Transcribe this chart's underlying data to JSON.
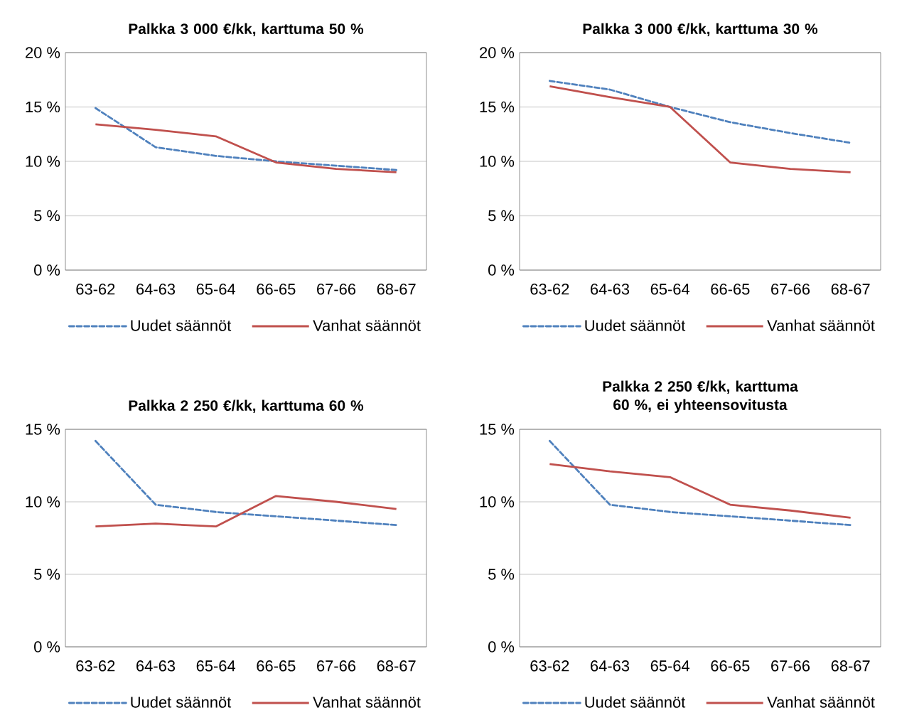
{
  "chart_data": [
    {
      "type": "line",
      "title": "Palkka 3 000 €/kk, karttuma 50 %",
      "categories": [
        "63-62",
        "64-63",
        "65-64",
        "66-65",
        "67-66",
        "68-67"
      ],
      "series": [
        {
          "name": "Uudet säännöt",
          "color": "#4f81bd",
          "line_style": "dashed",
          "values": [
            14.9,
            11.3,
            10.5,
            10.0,
            9.6,
            9.2
          ]
        },
        {
          "name": "Vanhat säännöt",
          "color": "#c0504d",
          "line_style": "solid",
          "values": [
            13.4,
            12.9,
            12.3,
            9.9,
            9.3,
            9.0
          ]
        }
      ],
      "ylim": [
        0,
        20
      ],
      "yticks": [
        {
          "value": 0,
          "label": "0 %"
        },
        {
          "value": 5,
          "label": "5 %"
        },
        {
          "value": 10,
          "label": "10 %"
        },
        {
          "value": 15,
          "label": "15 %"
        },
        {
          "value": 20,
          "label": "20 %"
        }
      ],
      "grid": "y",
      "legend": "bottom"
    },
    {
      "type": "line",
      "title": "Palkka 3 000 €/kk, karttuma 30 %",
      "categories": [
        "63-62",
        "64-63",
        "65-64",
        "66-65",
        "67-66",
        "68-67"
      ],
      "series": [
        {
          "name": "Uudet säännöt",
          "color": "#4f81bd",
          "line_style": "dashed",
          "values": [
            17.4,
            16.6,
            15.0,
            13.6,
            12.6,
            11.7
          ]
        },
        {
          "name": "Vanhat säännöt",
          "color": "#c0504d",
          "line_style": "solid",
          "values": [
            16.9,
            15.9,
            15.0,
            9.9,
            9.3,
            9.0
          ]
        }
      ],
      "ylim": [
        0,
        20
      ],
      "yticks": [
        {
          "value": 0,
          "label": "0 %"
        },
        {
          "value": 5,
          "label": "5 %"
        },
        {
          "value": 10,
          "label": "10 %"
        },
        {
          "value": 15,
          "label": "15 %"
        },
        {
          "value": 20,
          "label": "20 %"
        }
      ],
      "grid": "y",
      "legend": "bottom"
    },
    {
      "type": "line",
      "title": "Palkka 2 250 €/kk, karttuma 60 %",
      "categories": [
        "63-62",
        "64-63",
        "65-64",
        "66-65",
        "67-66",
        "68-67"
      ],
      "series": [
        {
          "name": "Uudet säännöt",
          "color": "#4f81bd",
          "line_style": "dashed",
          "values": [
            14.2,
            9.8,
            9.3,
            9.0,
            8.7,
            8.4
          ]
        },
        {
          "name": "Vanhat säännöt",
          "color": "#c0504d",
          "line_style": "solid",
          "values": [
            8.3,
            8.5,
            8.3,
            10.4,
            10.0,
            9.5
          ]
        }
      ],
      "ylim": [
        0,
        15
      ],
      "yticks": [
        {
          "value": 0,
          "label": "0 %"
        },
        {
          "value": 5,
          "label": "5 %"
        },
        {
          "value": 10,
          "label": "10 %"
        },
        {
          "value": 15,
          "label": "15 %"
        }
      ],
      "grid": "y",
      "legend": "bottom"
    },
    {
      "type": "line",
      "title": "Palkka 2 250 €/kk, karttuma 60 %, ei yhteensovitusta",
      "categories": [
        "63-62",
        "64-63",
        "65-64",
        "66-65",
        "67-66",
        "68-67"
      ],
      "series": [
        {
          "name": "Uudet säännöt",
          "color": "#4f81bd",
          "line_style": "dashed",
          "values": [
            14.2,
            9.8,
            9.3,
            9.0,
            8.7,
            8.4
          ]
        },
        {
          "name": "Vanhat säännöt",
          "color": "#c0504d",
          "line_style": "solid",
          "values": [
            12.6,
            12.1,
            11.7,
            9.8,
            9.4,
            8.9
          ]
        }
      ],
      "ylim": [
        0,
        15
      ],
      "yticks": [
        {
          "value": 0,
          "label": "0 %"
        },
        {
          "value": 5,
          "label": "5 %"
        },
        {
          "value": 10,
          "label": "10 %"
        },
        {
          "value": 15,
          "label": "15 %"
        }
      ],
      "grid": "y",
      "legend": "bottom"
    }
  ]
}
